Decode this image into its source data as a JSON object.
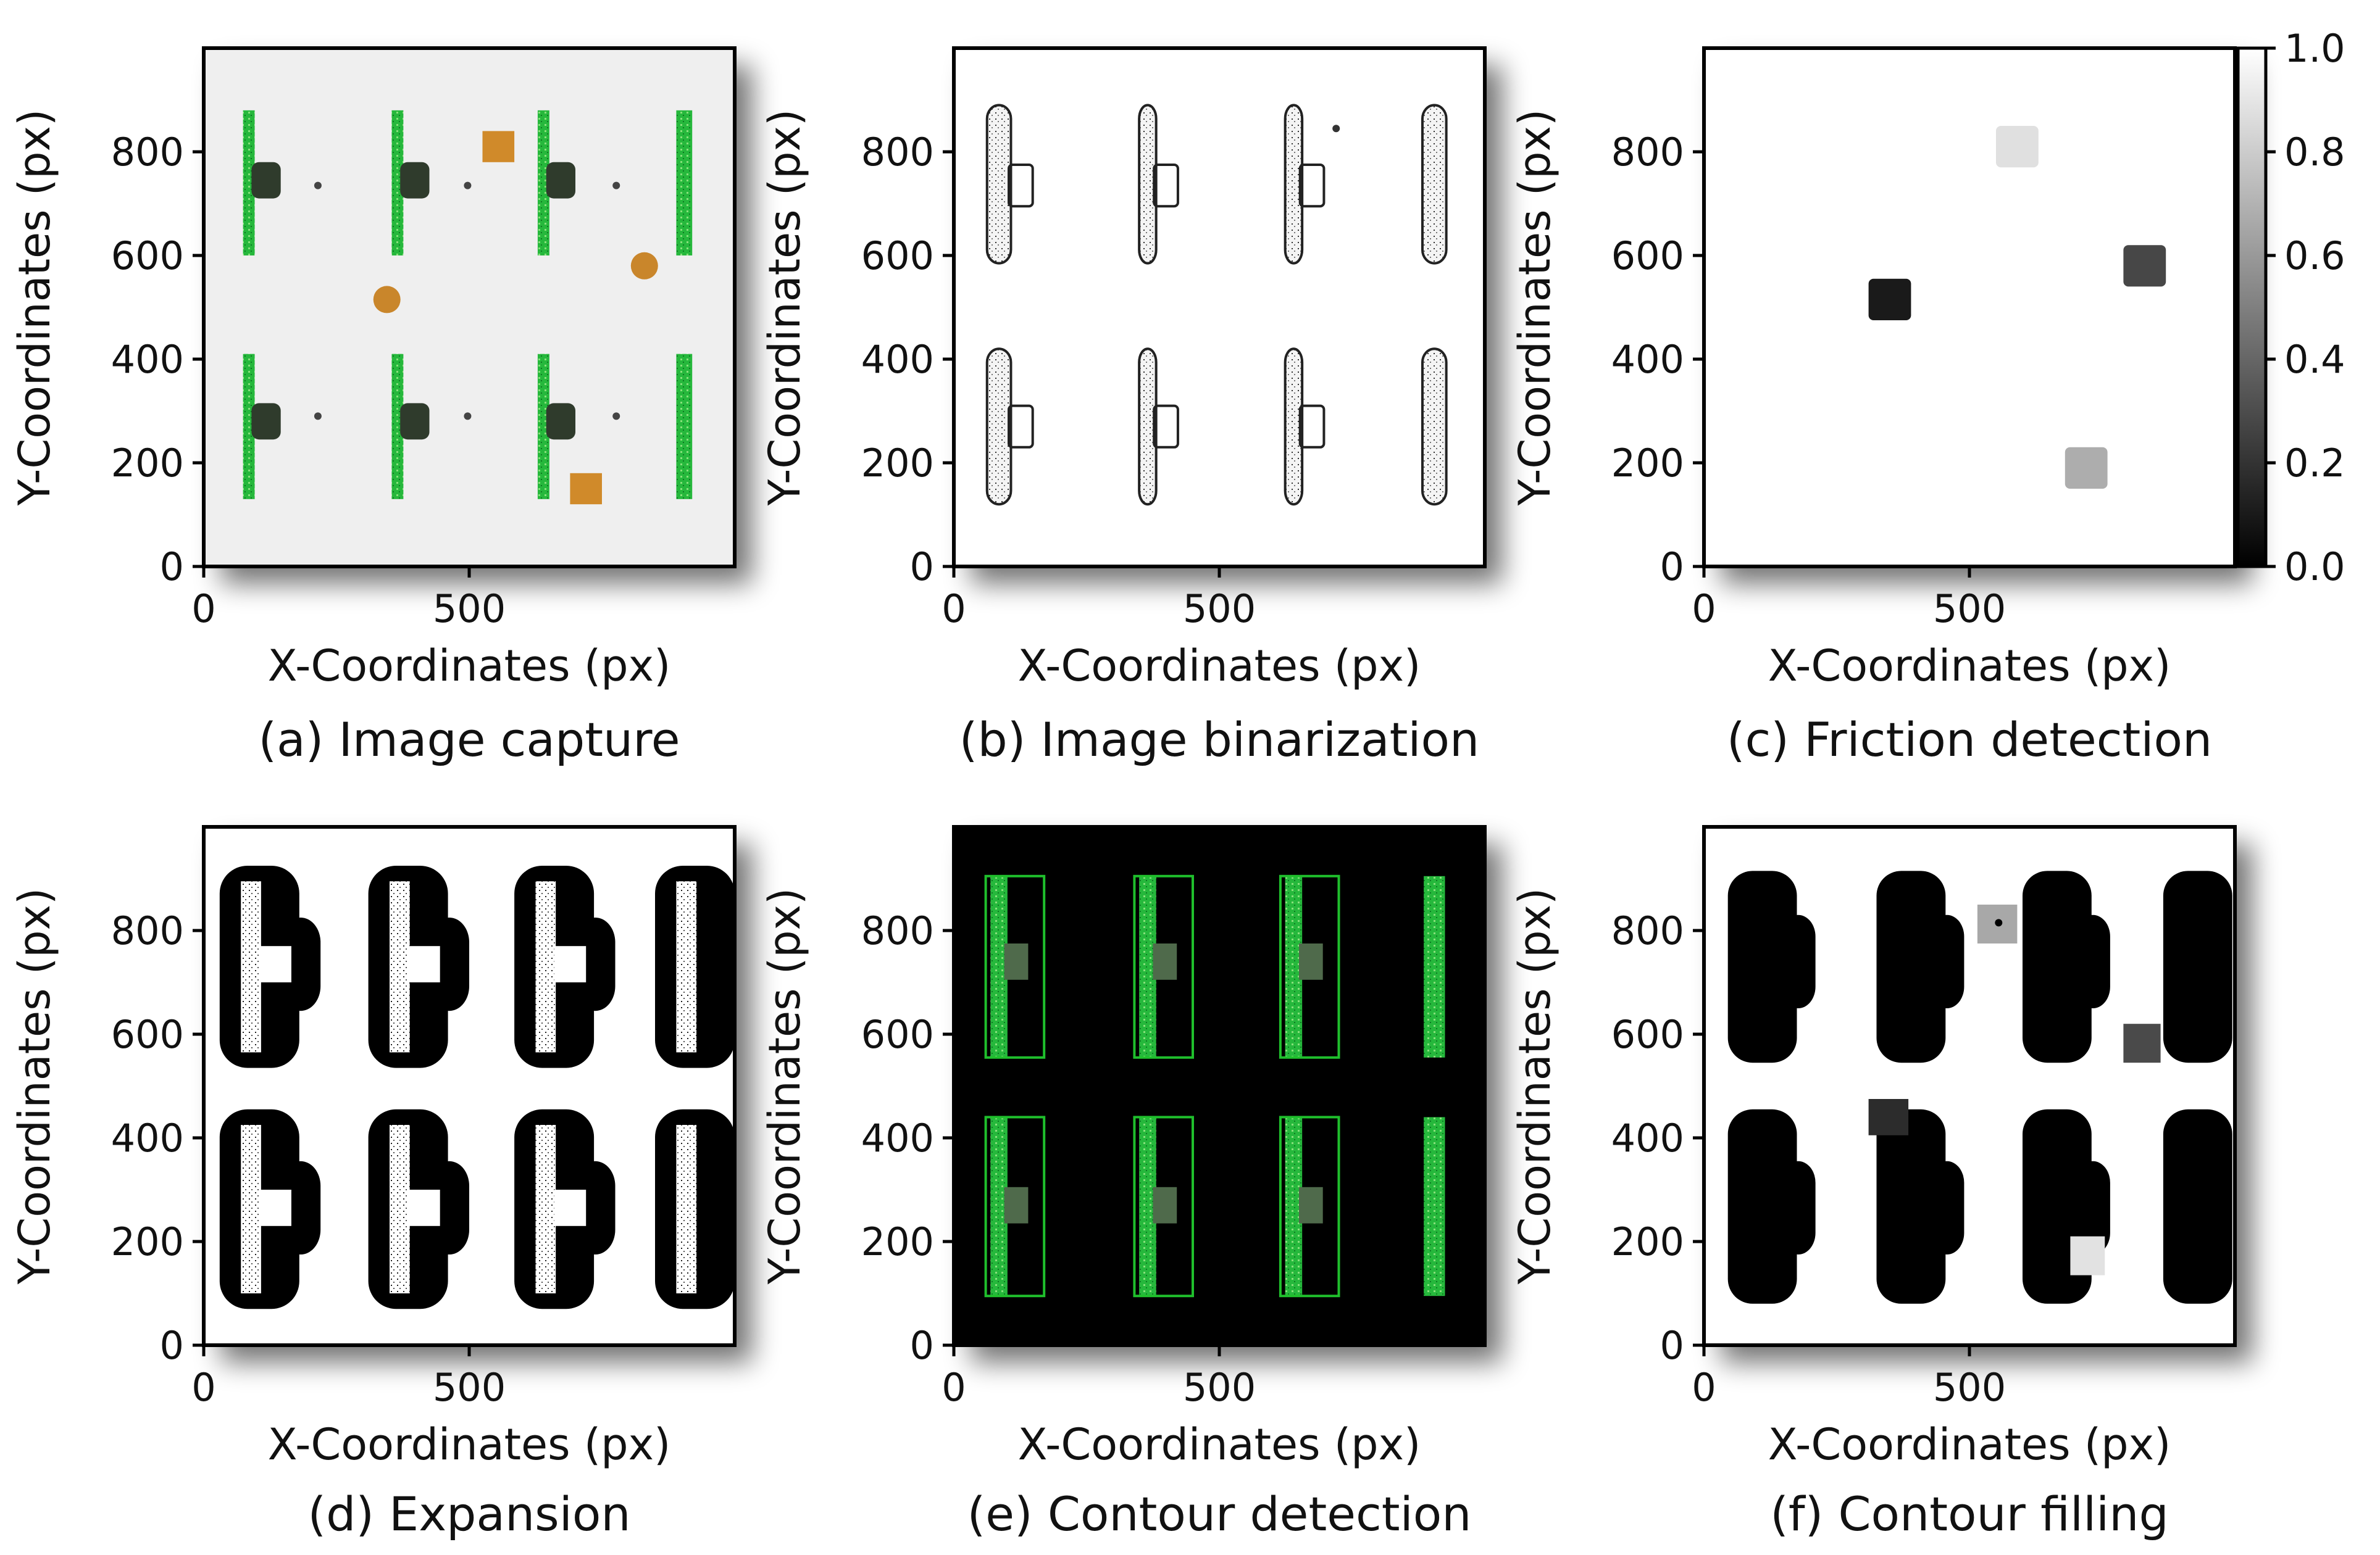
{
  "figure": {
    "axes": {
      "xlabel": "X-Coordinates (px)",
      "ylabel": "Y-Coordinates (px)",
      "xticks": [
        "0",
        "500"
      ],
      "yticks": [
        "0",
        "200",
        "400",
        "600",
        "800"
      ]
    },
    "panels": [
      {
        "id": "a",
        "caption": "(a)   Image capture",
        "type": "image-capture"
      },
      {
        "id": "b",
        "caption": "(b) Image binarization",
        "type": "binarized"
      },
      {
        "id": "c",
        "caption": "(c) Friction detection",
        "type": "friction-map"
      },
      {
        "id": "d",
        "caption": "(d) Expansion",
        "type": "expansion"
      },
      {
        "id": "e",
        "caption": "(e) Contour detection",
        "type": "contour-detection"
      },
      {
        "id": "f",
        "caption": "(f) Contour filling",
        "type": "contour-filling"
      }
    ],
    "colorbar": {
      "ticks": [
        "1.0",
        "0.8",
        "0.6",
        "0.4",
        "0.2",
        "0.0"
      ]
    },
    "colors": {
      "vegetation": "#22b43a",
      "block": "#2f3b2c",
      "debris": "#d08a2a",
      "background": "#efefef"
    }
  },
  "chart_data": [
    {
      "type": "heatmap",
      "panel": "c",
      "title": "(c) Friction detection",
      "xlabel": "X-Coordinates (px)",
      "ylabel": "Y-Coordinates (px)",
      "xlim": [
        0,
        1000
      ],
      "ylim": [
        0,
        1000
      ],
      "colorbar_range": [
        0.0,
        1.0
      ],
      "background_value": 1.0,
      "points": [
        {
          "x": 590,
          "y": 810,
          "value": 0.88
        },
        {
          "x": 350,
          "y": 515,
          "value": 0.1
        },
        {
          "x": 830,
          "y": 580,
          "value": 0.28
        },
        {
          "x": 720,
          "y": 190,
          "value": 0.68
        }
      ]
    }
  ]
}
